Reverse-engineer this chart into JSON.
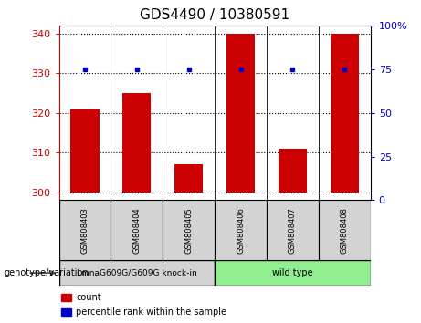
{
  "title": "GDS4490 / 10380591",
  "samples": [
    "GSM808403",
    "GSM808404",
    "GSM808405",
    "GSM808406",
    "GSM808407",
    "GSM808408"
  ],
  "counts": [
    321,
    325,
    307,
    340,
    311,
    340
  ],
  "percentile_ranks": [
    75,
    75,
    75,
    75,
    75,
    75
  ],
  "ylim_left": [
    298,
    342
  ],
  "ylim_right": [
    0,
    100
  ],
  "yticks_left": [
    300,
    310,
    320,
    330,
    340
  ],
  "yticks_right": [
    0,
    25,
    50,
    75,
    100
  ],
  "bar_color": "#cc0000",
  "dot_color": "#0000cc",
  "bar_base": 300,
  "groups": [
    {
      "label": "LmnaG609G/G609G knock-in",
      "samples": [
        0,
        1,
        2
      ],
      "color": "#90ee90"
    },
    {
      "label": "wild type",
      "samples": [
        3,
        4,
        5
      ],
      "color": "#90ee90"
    }
  ],
  "group_left_color": "#d3d3d3",
  "group_right_color": "#90ee90",
  "group_left_label": "LmnaG609G/G609G knock-in",
  "group_right_label": "wild type",
  "sample_box_color": "#d3d3d3",
  "genotype_label": "genotype/variation",
  "legend_count_label": "count",
  "legend_percentile_label": "percentile rank within the sample",
  "title_fontsize": 11,
  "tick_fontsize": 8,
  "left_tick_color": "#cc0000",
  "right_tick_color": "#0000cc",
  "bar_width": 0.55,
  "background_color": "#ffffff"
}
